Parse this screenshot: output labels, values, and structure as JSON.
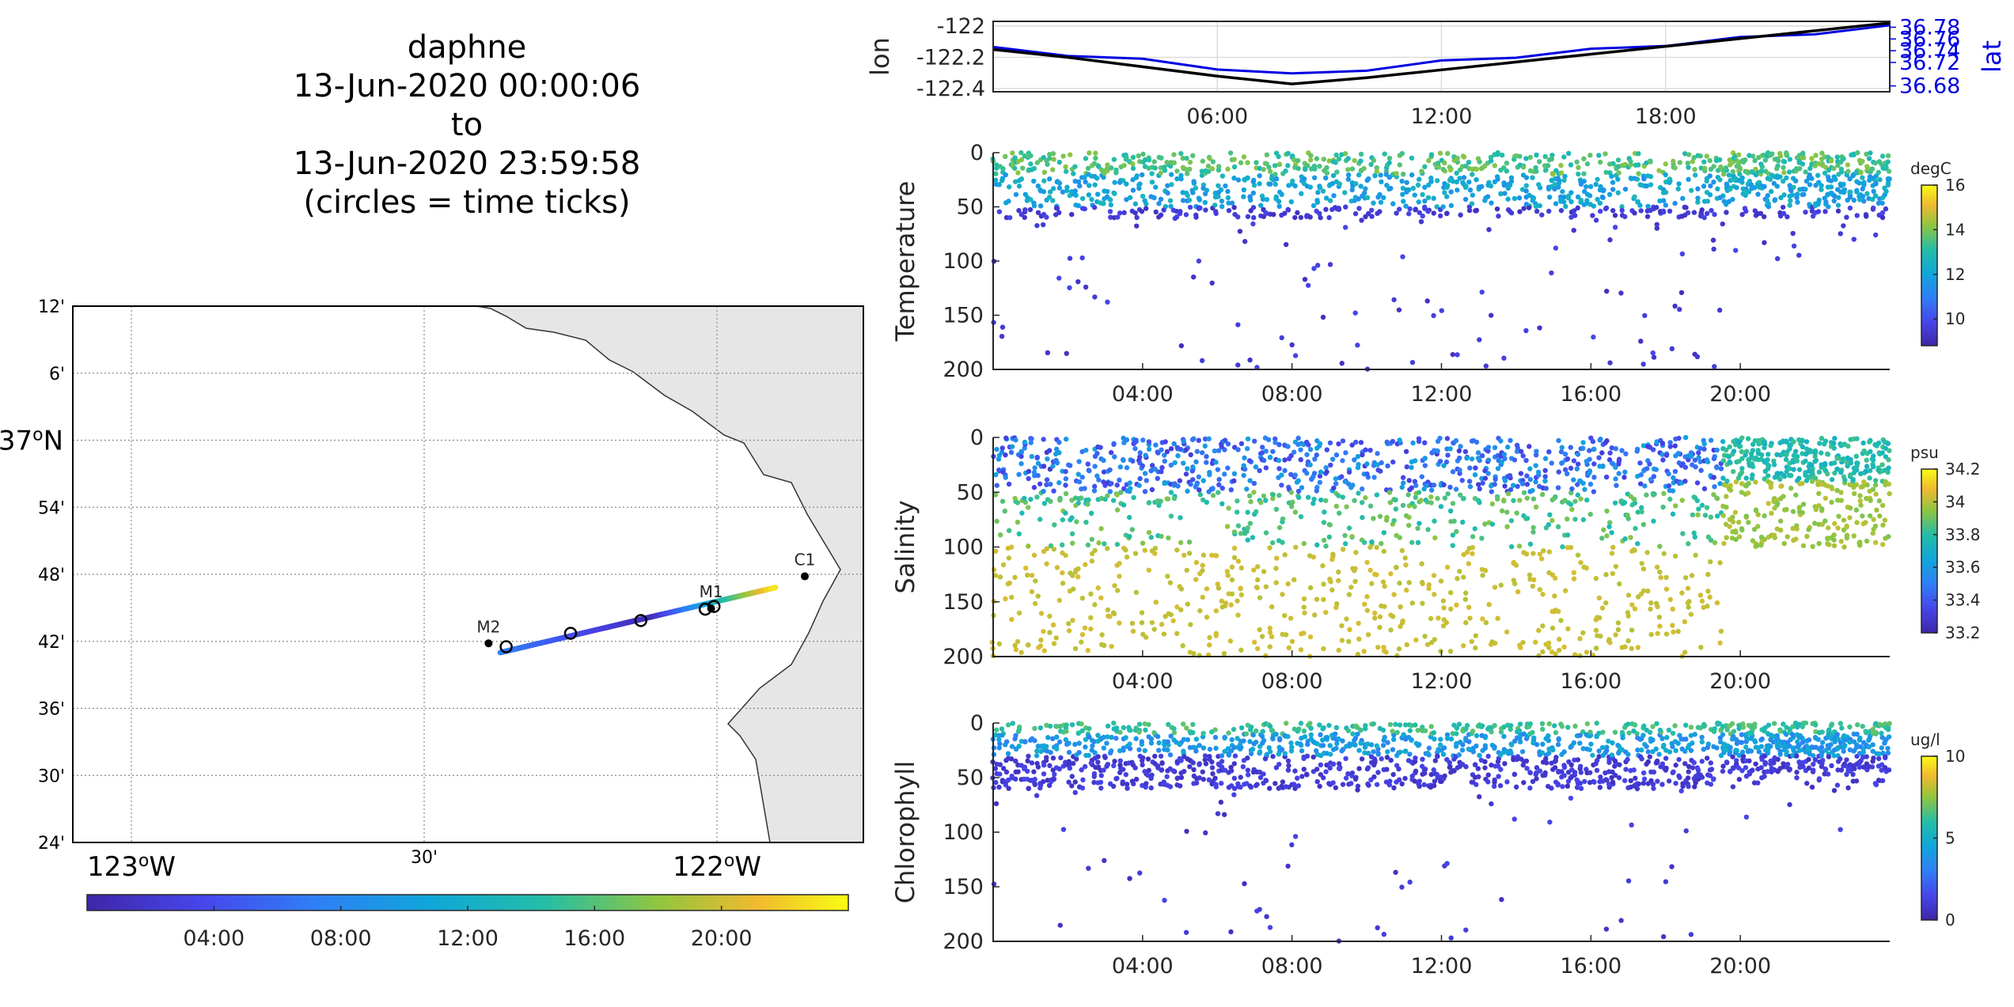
{
  "title": {
    "lines": [
      "daphne",
      "13-Jun-2020 00:00:06",
      "to",
      "13-Jun-2020 23:59:58",
      "(circles = time ticks)"
    ]
  },
  "chart_data": [
    {
      "id": "map",
      "type": "map",
      "lon_ticks": [
        {
          "lon": -123.0,
          "label": "123",
          "suffix": "W",
          "major": true
        },
        {
          "lon": -122.5,
          "label": "30'",
          "major": false
        },
        {
          "lon": -122.0,
          "label": "122",
          "suffix": "W",
          "major": true
        }
      ],
      "lat_ticks": [
        {
          "lat": 37.2,
          "label": "12'"
        },
        {
          "lat": 37.1,
          "label": "6'"
        },
        {
          "lat": 37.0,
          "label": "37",
          "suffix": "N",
          "major": true
        },
        {
          "lat": 36.9,
          "label": "54'"
        },
        {
          "lat": 36.8,
          "label": "48'"
        },
        {
          "lat": 36.7,
          "label": "42'"
        },
        {
          "lat": 36.6,
          "label": "36'"
        },
        {
          "lat": 36.5,
          "label": "30'"
        },
        {
          "lat": 36.4,
          "label": "24'"
        }
      ],
      "xlim": [
        -123.1,
        -121.75
      ],
      "ylim": [
        36.4,
        37.2
      ],
      "stations": [
        {
          "name": "C1",
          "lon": -121.85,
          "lat": 36.797
        },
        {
          "name": "M1",
          "lon": -122.01,
          "lat": 36.749
        },
        {
          "name": "M2",
          "lon": -122.39,
          "lat": 36.697
        }
      ],
      "track": {
        "start": [
          -122.37,
          36.688
        ],
        "end": [
          -121.9,
          36.785
        ]
      },
      "time_tick_circles": [
        [
          -122.36,
          36.692
        ],
        [
          -122.25,
          36.712
        ],
        [
          -122.13,
          36.731
        ],
        [
          -122.02,
          36.748
        ],
        [
          -122.005,
          36.752
        ]
      ],
      "colorbar_ticks": [
        "04:00",
        "08:00",
        "12:00",
        "16:00",
        "20:00"
      ]
    },
    {
      "id": "lonlat",
      "type": "line",
      "ylabel_left": "lon",
      "ylabel_right": "lat",
      "yticks_left": [
        "-122",
        "-122.2",
        "-122.4"
      ],
      "yticks_right": [
        "36.78",
        "36.76",
        "36.74",
        "36.72",
        "36.68"
      ],
      "xticks": [
        "06:00",
        "12:00",
        "18:00"
      ],
      "lon_series": {
        "x": [
          0,
          2,
          4,
          6,
          8,
          10,
          12,
          14,
          16,
          18,
          20,
          22,
          24
        ],
        "y": [
          -122.15,
          -122.2,
          -122.26,
          -122.32,
          -122.37,
          -122.33,
          -122.28,
          -122.23,
          -122.18,
          -122.13,
          -122.08,
          -122.03,
          -121.98
        ]
      },
      "lat_series": {
        "x": [
          0,
          2,
          4,
          6,
          8,
          10,
          12,
          14,
          16,
          18,
          20,
          22,
          24
        ],
        "y": [
          36.745,
          36.735,
          36.725,
          36.712,
          36.7,
          36.71,
          36.722,
          36.732,
          36.742,
          36.752,
          36.762,
          36.772,
          36.782
        ]
      }
    },
    {
      "id": "temperature",
      "type": "scatter",
      "ylabel": "Temperature",
      "yticks": [
        "0",
        "50",
        "100",
        "150",
        "200"
      ],
      "xticks": [
        "04:00",
        "08:00",
        "12:00",
        "16:00",
        "20:00"
      ],
      "colorbar": {
        "unit": "degC",
        "ticks": [
          "16",
          "14",
          "12",
          "10"
        ],
        "range": [
          8.8,
          16
        ]
      }
    },
    {
      "id": "salinity",
      "type": "scatter",
      "ylabel": "Salinity",
      "yticks": [
        "0",
        "50",
        "100",
        "150",
        "200"
      ],
      "xticks": [
        "04:00",
        "08:00",
        "12:00",
        "16:00",
        "20:00"
      ],
      "colorbar": {
        "unit": "psu",
        "ticks": [
          "34.2",
          "34",
          "33.8",
          "33.6",
          "33.4",
          "33.2"
        ],
        "range": [
          33.2,
          34.2
        ]
      }
    },
    {
      "id": "chlorophyll",
      "type": "scatter",
      "ylabel": "Chlorophyll",
      "yticks": [
        "0",
        "50",
        "100",
        "150",
        "200"
      ],
      "xticks": [
        "04:00",
        "08:00",
        "12:00",
        "16:00",
        "20:00"
      ],
      "colorbar": {
        "unit": "ug/l",
        "ticks": [
          "10",
          "5",
          "0"
        ],
        "range": [
          0,
          10
        ]
      }
    }
  ]
}
